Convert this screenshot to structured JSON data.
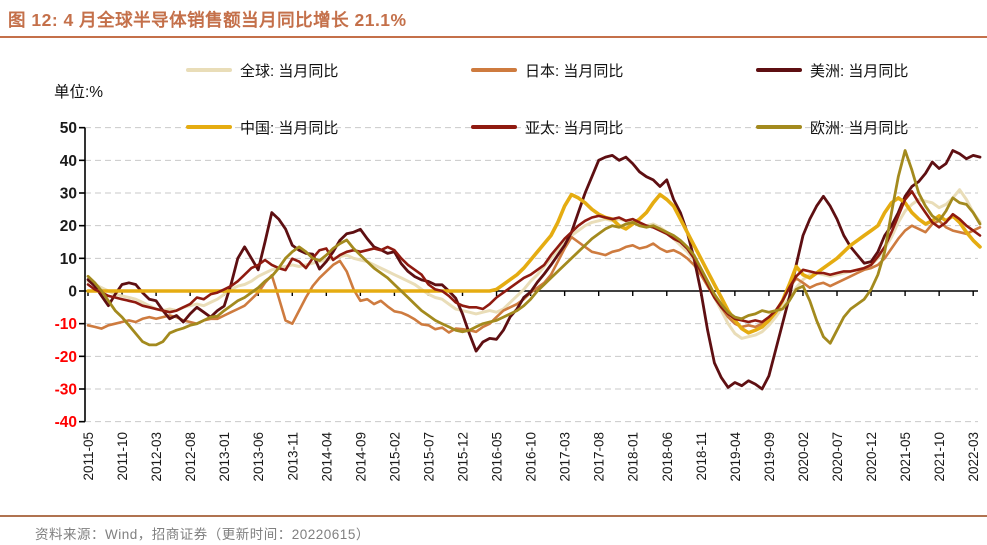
{
  "title": "图 12:  4 月全球半导体销售额当月同比增长 21.1%",
  "unit_label": "单位:%",
  "source": "资料来源：Wind，招商证券（更新时间：20220615）",
  "colors": {
    "title": "#C4704A",
    "divider": "#B07350",
    "source_text": "#808080",
    "grid": "#C9C9C9",
    "axis": "#000000",
    "tick_label_positive": "#1A1A1A",
    "tick_label_negative": "#FF0000"
  },
  "chart_data": {
    "type": "line",
    "title": "4 月全球半导体销售额当月同比增长 21.1%",
    "ylabel": "单位:%",
    "ylim": [
      -40,
      50
    ],
    "y_ticks": [
      50,
      40,
      30,
      20,
      10,
      0,
      -10,
      -20,
      -30,
      -40
    ],
    "grid": "horizontal-dashed",
    "legend_position": "top",
    "x_start": "2011-05",
    "x_end": "2022-04",
    "x_step_months": 1,
    "x_tick_every_months": 5,
    "x_tick_labels": [
      "2011-05",
      "2011-10",
      "2012-03",
      "2012-08",
      "2013-01",
      "2013-06",
      "2013-11",
      "2014-04",
      "2014-09",
      "2015-02",
      "2015-07",
      "2015-12",
      "2016-05",
      "2016-10",
      "2017-03",
      "2017-08",
      "2018-01",
      "2018-06",
      "2018-11",
      "2019-04",
      "2019-09",
      "2020-02",
      "2020-07",
      "2020-12",
      "2021-05",
      "2021-10",
      "2022-03"
    ],
    "series": [
      {
        "name": "全球: 当月同比",
        "key": "global",
        "color": "#E9DDB8",
        "width": 3.0,
        "values": [
          3,
          2,
          1,
          0,
          -1,
          -1.5,
          -2,
          -2.5,
          -3.5,
          -4.5,
          -5.5,
          -6,
          -5.5,
          -6,
          -5,
          -4.5,
          -4,
          -4.5,
          -3.5,
          -2.5,
          -1,
          0.5,
          1.5,
          2,
          3,
          4.5,
          5.5,
          6.5,
          7,
          7.5,
          8,
          7.5,
          8,
          8.5,
          9,
          9.5,
          10,
          10.5,
          11,
          10,
          9.5,
          9,
          8,
          7,
          6,
          5,
          4,
          3,
          2,
          0.5,
          -1,
          -2,
          -2.5,
          -4,
          -5.5,
          -6,
          -6.5,
          -7,
          -6.5,
          -6,
          -6.5,
          -5.5,
          -3.5,
          -1.5,
          0.5,
          3,
          5,
          7.5,
          10,
          12.5,
          15,
          17,
          18.5,
          20,
          21,
          21.5,
          22,
          21.5,
          22,
          21.5,
          21,
          20.5,
          20,
          20.5,
          19.5,
          18,
          16,
          14,
          12,
          9.5,
          6,
          2,
          -2,
          -6,
          -10,
          -13,
          -14.5,
          -14,
          -13.5,
          -12.5,
          -10.5,
          -8,
          -5,
          -2,
          1,
          3.5,
          5,
          5.5,
          5,
          4.5,
          5,
          5.5,
          6,
          6.5,
          7,
          8,
          10,
          13,
          16.5,
          21,
          24.5,
          26.5,
          28,
          27.5,
          27,
          25.5,
          26.5,
          28.5,
          31,
          28,
          24,
          21.1
        ]
      },
      {
        "name": "日本: 当月同比",
        "key": "japan",
        "color": "#CE7B3F",
        "width": 2.6,
        "values": [
          -10.5,
          -11,
          -11.5,
          -10.5,
          -10,
          -9.5,
          -9,
          -9.5,
          -8.5,
          -8,
          -8.5,
          -8,
          -7.5,
          -8,
          -9,
          -9.5,
          -10,
          -9,
          -8.5,
          -8.5,
          -7.5,
          -6.5,
          -5.5,
          -4.5,
          -2.5,
          -0.5,
          2.5,
          4.8,
          -2,
          -9,
          -10,
          -6,
          -2,
          1.5,
          4,
          6,
          8,
          9.2,
          6,
          0.5,
          -3,
          -2.5,
          -4,
          -3,
          -4.7,
          -6.2,
          -6.6,
          -7.5,
          -8.7,
          -10.2,
          -10.5,
          -11.7,
          -11.2,
          -12.7,
          -11.5,
          -11.7,
          -12,
          -12.5,
          -11,
          -10,
          -8,
          -6,
          -5,
          -4,
          -2.5,
          -0.5,
          1,
          2.5,
          5,
          9,
          13,
          16.5,
          15,
          13.5,
          12,
          11.5,
          11,
          12,
          12.5,
          13.5,
          14,
          13,
          13.5,
          14.5,
          13,
          12,
          12.5,
          11.5,
          10,
          8,
          5,
          1.5,
          -2,
          -5,
          -8,
          -10,
          -11,
          -10.5,
          -11,
          -10,
          -8.5,
          -6,
          -3,
          1,
          3.9,
          2.5,
          1,
          2,
          2.5,
          1.5,
          2.5,
          3.5,
          4.5,
          5.5,
          6.5,
          7,
          8,
          10,
          13,
          16,
          18.5,
          20,
          19,
          18,
          20.5,
          21.5,
          19.5,
          18.5,
          18,
          17.5,
          18.5,
          19.5
        ]
      },
      {
        "name": "美洲: 当月同比",
        "key": "americas",
        "color": "#5E0F12",
        "width": 2.8,
        "values": [
          3.5,
          1.5,
          -1.5,
          -4.5,
          -1,
          2,
          2.5,
          2,
          -0.5,
          -2.5,
          -3,
          -6,
          -8.5,
          -7.5,
          -9.5,
          -7,
          -5,
          -6.5,
          -8,
          -6,
          -4.6,
          2,
          10,
          13.5,
          10,
          6.5,
          15,
          24,
          22,
          19,
          14,
          12.5,
          11.5,
          11.3,
          6.7,
          9,
          12,
          15.5,
          17.5,
          18,
          18.9,
          16,
          13.5,
          12.6,
          11.5,
          12,
          8.4,
          6,
          4.4,
          3.4,
          2.9,
          1.9,
          1.9,
          0,
          -2.2,
          -7,
          -13,
          -18.4,
          -15.6,
          -14.5,
          -14.8,
          -12,
          -7.9,
          -5.5,
          -2,
          -0.3,
          2.7,
          5.2,
          8,
          11,
          14,
          18,
          24,
          30,
          35,
          40,
          41,
          41.5,
          40,
          41,
          39,
          36.5,
          35,
          34,
          32,
          34,
          28,
          24,
          18,
          10,
          0,
          -12,
          -22,
          -26.5,
          -29.5,
          -28,
          -29,
          -27.5,
          -28.5,
          -30,
          -26,
          -18,
          -10,
          -2,
          8,
          17,
          22,
          26,
          29,
          26,
          22,
          17,
          13.5,
          11,
          8.5,
          9,
          12,
          17,
          20,
          24,
          29,
          32,
          33.5,
          36,
          39.5,
          37.5,
          39,
          43,
          42,
          40.5,
          41.5,
          41
        ]
      },
      {
        "name": "中国: 当月同比",
        "key": "china",
        "color": "#E5AC11",
        "width": 3.6,
        "values": [
          0,
          0,
          0,
          0,
          0,
          0,
          0,
          0,
          0,
          0,
          0,
          0,
          0,
          0,
          0,
          0,
          0,
          0,
          0,
          0,
          0,
          0,
          0,
          0,
          0,
          0,
          0,
          0,
          0,
          0,
          0,
          0,
          0,
          0,
          0,
          0,
          0,
          0,
          0,
          0,
          0,
          0,
          0,
          0,
          0,
          0,
          0,
          0,
          0,
          0,
          0,
          0,
          0,
          0,
          0,
          0,
          0,
          0,
          0,
          0,
          0.5,
          2,
          3.5,
          5,
          7,
          9.5,
          12,
          14.5,
          17,
          21,
          26,
          29.5,
          28.5,
          27,
          25,
          23.5,
          22.5,
          22,
          20,
          19,
          20.5,
          22,
          24,
          27,
          29.5,
          28,
          26,
          22,
          18,
          14,
          10,
          6,
          2,
          -2,
          -6,
          -9,
          -11.5,
          -12.8,
          -12,
          -11,
          -9,
          -6.5,
          -3,
          2,
          7.5,
          5,
          4,
          5.5,
          7,
          8.5,
          10,
          12,
          14,
          15.5,
          17,
          18.5,
          20,
          24,
          27,
          28.5,
          27,
          24,
          22,
          20.5,
          21.5,
          23,
          21.5,
          23,
          21,
          18,
          15.5,
          13.5
        ]
      },
      {
        "name": "亚太: 当月同比",
        "key": "asiapac",
        "color": "#8F1A10",
        "width": 2.6,
        "values": [
          2,
          0.5,
          -0.5,
          -1.5,
          -2,
          -2.5,
          -3,
          -3.5,
          -4.5,
          -5,
          -5.5,
          -6,
          -6.5,
          -6,
          -5,
          -4,
          -2,
          -2.5,
          -1,
          -0.5,
          0.5,
          1.5,
          3,
          5,
          7,
          8,
          9.5,
          8,
          7,
          6.4,
          9.9,
          9,
          7,
          10,
          12.5,
          13,
          9.5,
          11,
          12,
          12.5,
          12,
          12.5,
          13,
          12.5,
          13.5,
          12.5,
          10,
          8,
          6.5,
          5,
          2,
          0.5,
          0,
          -1.5,
          -3.5,
          -4.5,
          -5,
          -5,
          -5.5,
          -4,
          -2,
          -0.5,
          1,
          2.5,
          4,
          5,
          6.5,
          8,
          11,
          13.5,
          16,
          18,
          20,
          21.5,
          22.5,
          23,
          22.5,
          22,
          22.5,
          21.5,
          22,
          21,
          20,
          19.5,
          18.5,
          17.5,
          16,
          15,
          13,
          10,
          6,
          2,
          -2,
          -5,
          -7,
          -8.5,
          -9,
          -9.5,
          -9,
          -9.5,
          -8,
          -6,
          -3,
          1,
          4.5,
          6.5,
          6,
          5.5,
          5.5,
          5,
          5.5,
          6,
          6,
          6.5,
          7,
          8,
          10.5,
          13.5,
          18,
          23,
          28,
          30.5,
          27,
          24,
          21,
          19.5,
          21,
          23.5,
          22,
          20,
          18.5,
          17
        ]
      },
      {
        "name": "欧洲: 当月同比",
        "key": "europe",
        "color": "#A38A1E",
        "width": 2.8,
        "values": [
          4.5,
          2.5,
          0,
          -3,
          -6,
          -8,
          -10.5,
          -13,
          -15.5,
          -16.5,
          -16.5,
          -15.5,
          -12.9,
          -12,
          -11.4,
          -10.5,
          -10,
          -9,
          -8,
          -7.7,
          -6,
          -4.5,
          -3,
          -2,
          -0.5,
          1,
          3,
          4.5,
          7,
          10,
          12,
          13.5,
          12,
          10,
          9.3,
          11,
          13,
          14.5,
          15.6,
          13,
          11,
          9,
          7,
          5.5,
          4,
          2,
          0,
          -2,
          -4,
          -6,
          -7.5,
          -9,
          -10,
          -11,
          -12,
          -12.5,
          -12,
          -11,
          -10,
          -9.5,
          -9,
          -8,
          -7,
          -6,
          -4.5,
          -2.5,
          0,
          2,
          4,
          6,
          8,
          10,
          12,
          14,
          16,
          17.5,
          19,
          20,
          19.5,
          20.5,
          21,
          20,
          19.5,
          20,
          19,
          18,
          17,
          15.5,
          13.5,
          11,
          7,
          3,
          -1,
          -4,
          -6.5,
          -8,
          -8.5,
          -7.5,
          -7,
          -6,
          -6.5,
          -6,
          -5.5,
          -3,
          0.5,
          1.5,
          -3,
          -9,
          -14,
          -16,
          -12,
          -8,
          -5.5,
          -4,
          -2.5,
          0.5,
          5,
          12,
          24,
          35,
          43,
          37,
          30,
          26,
          23,
          21.5,
          24.5,
          28.5,
          27,
          26.5,
          24,
          20.5
        ]
      }
    ]
  }
}
